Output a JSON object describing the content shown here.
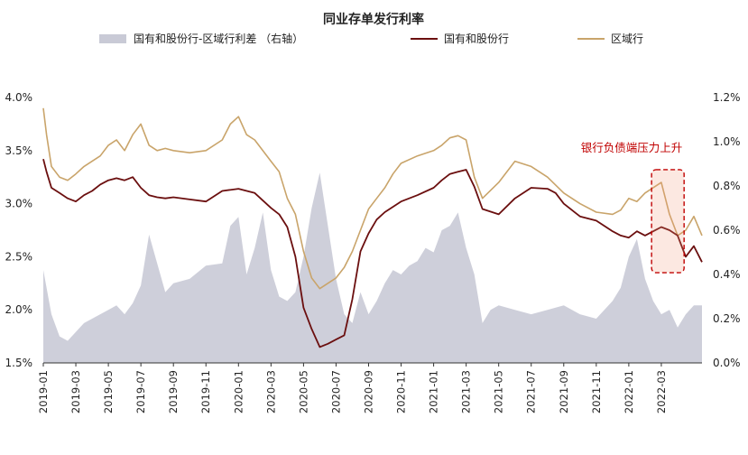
{
  "chart_data": {
    "type": "line",
    "title": "同业存单发行利率",
    "legend": {
      "placement": "top",
      "items": [
        {
          "label": "国有和股份行-区域行利差 （右轴）",
          "type": "area",
          "color": "#c9cad6"
        },
        {
          "label": "国有和股份行",
          "type": "line",
          "color": "#6b0f0f"
        },
        {
          "label": "区域行",
          "type": "line",
          "color": "#c9a46a"
        }
      ]
    },
    "y_left": {
      "min": 1.5,
      "max": 4.0,
      "ticks": [
        "1.5%",
        "2.0%",
        "2.5%",
        "3.0%",
        "3.5%",
        "4.0%"
      ]
    },
    "y_right": {
      "min": 0.0,
      "max": 1.2,
      "ticks": [
        "0.0%",
        "0.2%",
        "0.4%",
        "0.6%",
        "0.8%",
        "1.0%",
        "1.2%"
      ]
    },
    "x_ticks": [
      "2019-01",
      "2019-03",
      "2019-05",
      "2019-07",
      "2019-09",
      "2019-11",
      "2020-01",
      "2020-03",
      "2020-05",
      "2020-07",
      "2020-09",
      "2020-11",
      "2021-01",
      "2021-03",
      "2021-05",
      "2021-07",
      "2021-09",
      "2021-11",
      "2022-01",
      "2022-03"
    ],
    "x_range": {
      "start": "2019-01",
      "end_month_index": 40.5
    },
    "series": [
      {
        "name": "国有和股份行",
        "axis": "left",
        "color": "#6b0f0f",
        "x": [
          0,
          0.2,
          0.5,
          1.0,
          1.5,
          2.0,
          2.5,
          3.0,
          3.5,
          4.0,
          4.5,
          5.0,
          5.5,
          6.0,
          6.5,
          7.0,
          7.5,
          8.0,
          9.0,
          10.0,
          11.0,
          12.0,
          13.0,
          14.0,
          14.5,
          15.0,
          15.5,
          16.0,
          16.5,
          17.0,
          17.5,
          18.0,
          18.5,
          19.0,
          19.5,
          20.0,
          20.5,
          21.0,
          21.5,
          22.0,
          23.0,
          24.0,
          24.5,
          25.0,
          25.5,
          26.0,
          26.5,
          27.0,
          28.0,
          29.0,
          30.0,
          31.0,
          31.5,
          32.0,
          33.0,
          34.0,
          35.0,
          35.5,
          36.0,
          36.5,
          37.0,
          38.0,
          38.5,
          39.0,
          39.5,
          40.0,
          40.5
        ],
        "values": [
          3.42,
          3.3,
          3.15,
          3.1,
          3.05,
          3.02,
          3.08,
          3.12,
          3.18,
          3.22,
          3.24,
          3.22,
          3.25,
          3.15,
          3.08,
          3.06,
          3.05,
          3.06,
          3.04,
          3.02,
          3.12,
          3.14,
          3.1,
          2.96,
          2.9,
          2.78,
          2.5,
          2.02,
          1.82,
          1.65,
          1.68,
          1.72,
          1.76,
          2.1,
          2.55,
          2.72,
          2.85,
          2.92,
          2.97,
          3.02,
          3.08,
          3.15,
          3.22,
          3.28,
          3.3,
          3.32,
          3.16,
          2.95,
          2.9,
          3.05,
          3.15,
          3.14,
          3.1,
          3.0,
          2.88,
          2.84,
          2.74,
          2.7,
          2.68,
          2.74,
          2.7,
          2.78,
          2.75,
          2.7,
          2.5,
          2.6,
          2.45
        ]
      },
      {
        "name": "区域行",
        "axis": "left",
        "color": "#c9a46a",
        "x": [
          0,
          0.2,
          0.5,
          1.0,
          1.5,
          2.0,
          2.5,
          3.0,
          3.5,
          4.0,
          4.5,
          5.0,
          5.5,
          6.0,
          6.5,
          7.0,
          7.5,
          8.0,
          9.0,
          10.0,
          11.0,
          11.5,
          12.0,
          12.5,
          13.0,
          14.0,
          14.5,
          15.0,
          15.5,
          16.0,
          16.5,
          17.0,
          17.5,
          18.0,
          18.5,
          19.0,
          19.5,
          20.0,
          20.5,
          21.0,
          21.5,
          22.0,
          23.0,
          24.0,
          24.5,
          25.0,
          25.5,
          26.0,
          26.5,
          27.0,
          28.0,
          29.0,
          30.0,
          31.0,
          32.0,
          33.0,
          34.0,
          35.0,
          35.5,
          36.0,
          36.5,
          37.0,
          38.0,
          38.5,
          39.0,
          39.5,
          40.0,
          40.5
        ],
        "values": [
          3.9,
          3.65,
          3.35,
          3.25,
          3.22,
          3.28,
          3.35,
          3.4,
          3.45,
          3.55,
          3.6,
          3.5,
          3.65,
          3.75,
          3.55,
          3.5,
          3.52,
          3.5,
          3.48,
          3.5,
          3.6,
          3.75,
          3.82,
          3.65,
          3.6,
          3.4,
          3.3,
          3.05,
          2.9,
          2.55,
          2.3,
          2.2,
          2.25,
          2.3,
          2.4,
          2.55,
          2.75,
          2.95,
          3.05,
          3.15,
          3.28,
          3.38,
          3.45,
          3.5,
          3.55,
          3.62,
          3.64,
          3.6,
          3.25,
          3.05,
          3.2,
          3.4,
          3.35,
          3.25,
          3.1,
          3.0,
          2.92,
          2.9,
          2.94,
          3.05,
          3.02,
          3.1,
          3.2,
          2.9,
          2.7,
          2.75,
          2.88,
          2.7
        ]
      },
      {
        "name": "国有和股份行-区域行利差 （右轴）",
        "axis": "right",
        "color": "#c9cad6",
        "x": [
          0,
          0.5,
          1.0,
          1.5,
          2.0,
          2.5,
          3.0,
          3.5,
          4.0,
          4.5,
          5.0,
          5.5,
          6.0,
          6.5,
          7.0,
          7.5,
          8.0,
          9.0,
          10.0,
          11.0,
          11.5,
          12.0,
          12.5,
          13.0,
          13.5,
          14.0,
          14.5,
          15.0,
          15.5,
          16.0,
          16.5,
          17.0,
          17.5,
          18.0,
          18.5,
          19.0,
          19.5,
          20.0,
          20.5,
          21.0,
          21.5,
          22.0,
          22.5,
          23.0,
          23.5,
          24.0,
          24.5,
          25.0,
          25.5,
          26.0,
          26.5,
          27.0,
          27.5,
          28.0,
          29.0,
          30.0,
          31.0,
          32.0,
          33.0,
          34.0,
          35.0,
          35.5,
          36.0,
          36.5,
          37.0,
          37.5,
          38.0,
          38.5,
          39.0,
          39.5,
          40.0,
          40.5
        ],
        "values": [
          0.42,
          0.22,
          0.12,
          0.1,
          0.14,
          0.18,
          0.2,
          0.22,
          0.24,
          0.26,
          0.22,
          0.27,
          0.35,
          0.58,
          0.45,
          0.32,
          0.36,
          0.38,
          0.44,
          0.45,
          0.62,
          0.66,
          0.4,
          0.52,
          0.68,
          0.42,
          0.3,
          0.28,
          0.32,
          0.48,
          0.7,
          0.86,
          0.62,
          0.38,
          0.22,
          0.18,
          0.32,
          0.22,
          0.28,
          0.36,
          0.42,
          0.4,
          0.44,
          0.46,
          0.52,
          0.5,
          0.6,
          0.62,
          0.68,
          0.52,
          0.4,
          0.18,
          0.24,
          0.26,
          0.24,
          0.22,
          0.24,
          0.26,
          0.22,
          0.2,
          0.28,
          0.34,
          0.48,
          0.56,
          0.38,
          0.28,
          0.22,
          0.24,
          0.16,
          0.22,
          0.26,
          0.26
        ]
      }
    ],
    "annotation": {
      "text": "银行负债端压力上升",
      "color": "#c00000",
      "x_start": 37.4,
      "x_end": 39.4,
      "y_top": 3.32,
      "y_bottom": 2.35
    },
    "grid": false
  }
}
